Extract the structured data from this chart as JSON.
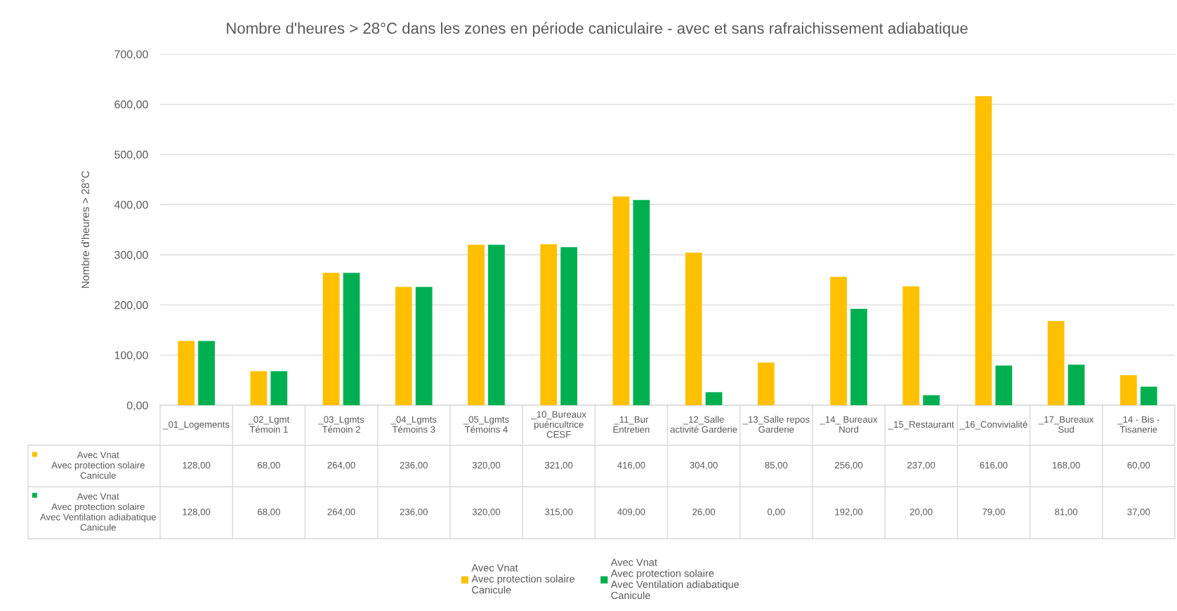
{
  "chart_data": {
    "type": "bar",
    "title": "Nombre d'heures > 28°C dans les zones en période caniculaire - avec et sans rafraichissement adiabatique",
    "ylabel": "Nombre d'heures > 28°C",
    "categories": [
      "_01_Logements",
      "_02_Lgmt\nTémoin 1",
      "_03_Lgmts\nTémoin 2",
      "_04_Lgmts\nTémoins 3",
      "_05_Lgmts\nTémoins 4",
      "_10_Bureaux\npuéricultrice\nCESF",
      "_11_Bur\nEntretien",
      "_12_Salle\nactivité Garderie",
      "_13_Salle repos\nGarderie",
      "_14_ Bureaux\nNord",
      "_15_Restaurant",
      "_16_Convivialité",
      "_17_Bureaux\nSud",
      "_14 - Bis -\nTisanerie"
    ],
    "series": [
      {
        "name": "Avec Vnat\nAvec protection solaire\nCanicule",
        "color": "#ffc000",
        "values": [
          128,
          68,
          264,
          236,
          320,
          321,
          416,
          304,
          85,
          256,
          237,
          616,
          168,
          60
        ],
        "value_labels": [
          "128,00",
          "68,00",
          "264,00",
          "236,00",
          "320,00",
          "321,00",
          "416,00",
          "304,00",
          "85,00",
          "256,00",
          "237,00",
          "616,00",
          "168,00",
          "60,00"
        ]
      },
      {
        "name": "Avec Vnat\nAvec protection solaire\nAvec Ventilation adiabatique\nCanicule",
        "color": "#00b050",
        "values": [
          128,
          68,
          264,
          236,
          320,
          315,
          409,
          26,
          0,
          192,
          20,
          79,
          81,
          37
        ],
        "value_labels": [
          "128,00",
          "68,00",
          "264,00",
          "236,00",
          "320,00",
          "315,00",
          "409,00",
          "26,00",
          "0,00",
          "192,00",
          "20,00",
          "79,00",
          "81,00",
          "37,00"
        ]
      }
    ],
    "ylim": [
      0,
      700
    ],
    "yticks": [
      {
        "value": 0,
        "label": "0,00"
      },
      {
        "value": 100,
        "label": "100,00"
      },
      {
        "value": 200,
        "label": "200,00"
      },
      {
        "value": 300,
        "label": "300,00"
      },
      {
        "value": 400,
        "label": "400,00"
      },
      {
        "value": 500,
        "label": "500,00"
      },
      {
        "value": 600,
        "label": "600,00"
      },
      {
        "value": 700,
        "label": "700,00"
      }
    ],
    "grid": "y",
    "legend": "bottom"
  }
}
